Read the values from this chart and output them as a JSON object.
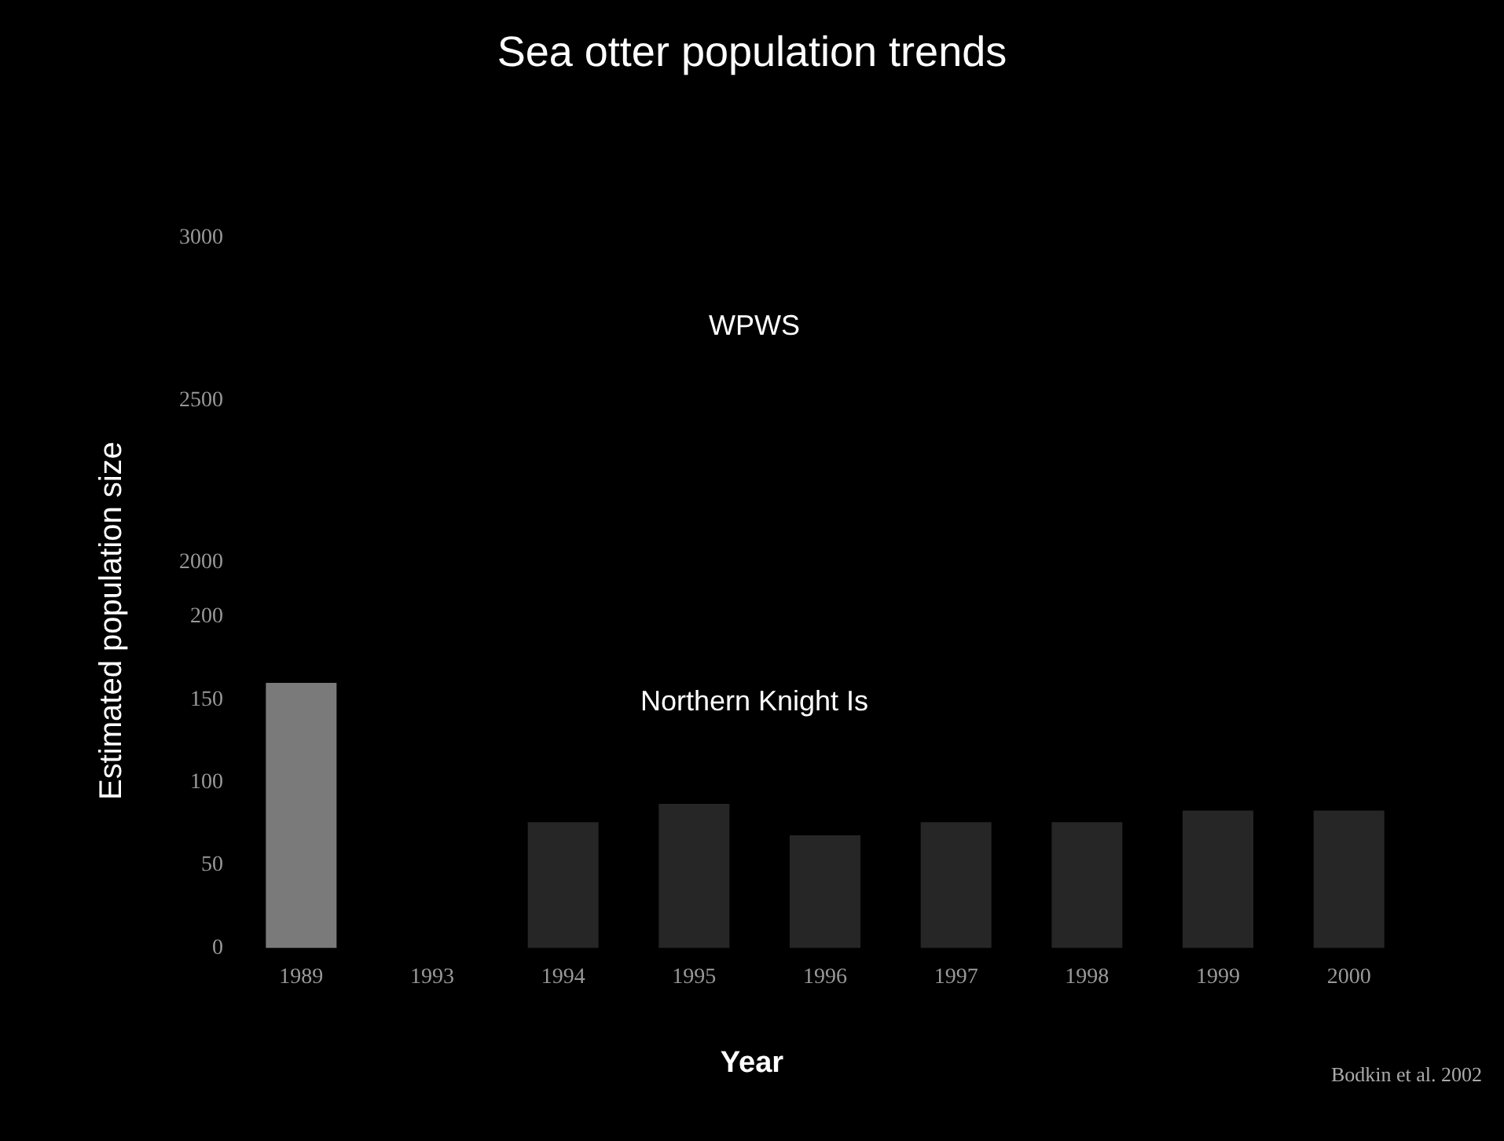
{
  "chart_data": [
    {
      "type": "bar",
      "title": "Sea otter population trends",
      "subtitle": "WPWS",
      "categories": [
        "1989",
        "1993",
        "1994",
        "1995",
        "1996",
        "1997",
        "1998",
        "1999",
        "2000"
      ],
      "values": [
        null,
        null,
        null,
        null,
        null,
        null,
        null,
        null,
        null
      ],
      "ylim": [
        2000,
        3000
      ],
      "yticks": [
        2000,
        2500,
        3000
      ],
      "tick_labels": "y",
      "grid": false,
      "legend": false
    },
    {
      "type": "bar",
      "subtitle": "Northern Knight Is",
      "xlabel": "Year",
      "ylabel": "Estimated population size",
      "annotations": [
        "Bodkin et al. 2002"
      ],
      "categories": [
        "1989",
        "1993",
        "1994",
        "1995",
        "1996",
        "1997",
        "1998",
        "1999",
        "2000"
      ],
      "values": [
        160,
        null,
        76,
        87,
        68,
        76,
        76,
        83,
        83
      ],
      "colors": [
        "#7a7a7a",
        "#262626",
        "#262626",
        "#262626",
        "#262626",
        "#262626",
        "#262626",
        "#262626",
        "#262626"
      ],
      "ylim": [
        0,
        200
      ],
      "yticks": [
        0,
        50,
        100,
        150,
        200
      ],
      "grid": false,
      "legend": false
    }
  ]
}
